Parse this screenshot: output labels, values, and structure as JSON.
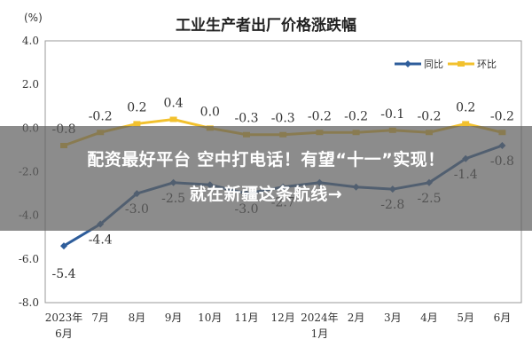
{
  "chart_data": {
    "type": "line",
    "title": "工业生产者出厂价格涨跌幅",
    "ylabel": "(%)",
    "xlabel": "",
    "ylim": [
      -8.0,
      4.0
    ],
    "yticks": [
      "4.0",
      "2.0",
      "0.0",
      "-2.0",
      "-4.0",
      "-6.0",
      "-8.0"
    ],
    "categories": [
      [
        "2023年",
        "6月"
      ],
      [
        "7月"
      ],
      [
        "8月"
      ],
      [
        "9月"
      ],
      [
        "10月"
      ],
      [
        "11月"
      ],
      [
        "12月"
      ],
      [
        "2024年",
        "1月"
      ],
      [
        "2月"
      ],
      [
        "3月"
      ],
      [
        "4月"
      ],
      [
        "5月"
      ],
      [
        "6月"
      ]
    ],
    "series": [
      {
        "name": "同比",
        "color": "#2e5d9b",
        "values": [
          -5.4,
          -4.4,
          -3.0,
          -2.5,
          -2.6,
          -3.0,
          -2.7,
          -2.5,
          -2.7,
          -2.8,
          -2.5,
          -1.4,
          -0.8
        ],
        "labels": [
          "-5.4",
          "-4.4",
          "-3.0",
          "-2.5",
          "",
          "-3.0",
          "-2.7",
          "",
          "",
          "-2.8",
          "-2.5",
          "-1.4",
          "-0.8"
        ]
      },
      {
        "name": "环比",
        "color": "#f2c12e",
        "values": [
          -0.8,
          -0.2,
          0.2,
          0.4,
          0.0,
          -0.3,
          -0.3,
          -0.2,
          -0.2,
          -0.1,
          -0.2,
          0.2,
          -0.2
        ],
        "labels": [
          "-0.8",
          "-0.2",
          "0.2",
          "0.4",
          "0.0",
          "-0.3",
          "-0.3",
          "-0.2",
          "-0.2",
          "-0.1",
          "-0.2",
          "0.2",
          "-0.2"
        ]
      }
    ],
    "legend": "top-right",
    "grid": false
  },
  "banner": {
    "line1": "配资最好平台 空中打电话！有望“十一”实现！",
    "line2": "就在新疆这条航线→"
  }
}
